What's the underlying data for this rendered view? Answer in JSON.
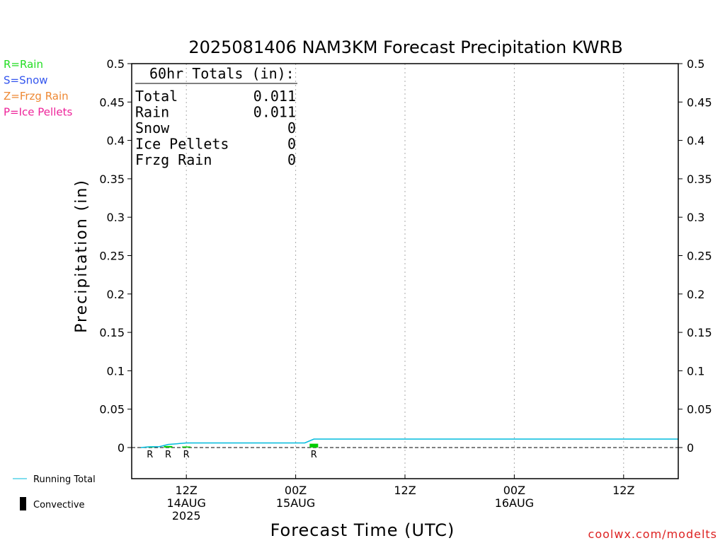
{
  "title": "2025081406 NAM3KM Forecast Precipitation KWRB",
  "ylabel": "Precipitation (in)",
  "xlabel": "Forecast Time (UTC)",
  "credit": "coolwx.com/modelts",
  "legend_types": [
    {
      "text": "R=Rain",
      "color": "#22dd22"
    },
    {
      "text": "S=Snow",
      "color": "#3355ee"
    },
    {
      "text": "Z=Frzg Rain",
      "color": "#ee8833"
    },
    {
      "text": "P=Ice Pellets",
      "color": "#ee2299"
    }
  ],
  "legend_bottom": {
    "running_total": "Running Total",
    "convective": "Convective",
    "running_total_color": "#00bbdd",
    "convective_color": "#000000"
  },
  "totals": {
    "header": "60hr Totals (in):",
    "rows": [
      {
        "label": "Total",
        "value": "0.011"
      },
      {
        "label": "Rain",
        "value": "0.011"
      },
      {
        "label": "Snow",
        "value": "0"
      },
      {
        "label": "Ice Pellets",
        "value": "0"
      },
      {
        "label": "Frzg Rain",
        "value": "0"
      }
    ]
  },
  "chart_data": {
    "type": "bar",
    "title": "2025081406 NAM3KM Forecast Precipitation KWRB",
    "xlabel": "Forecast Time (UTC)",
    "ylabel": "Precipitation (in)",
    "x_units": "forecast hours from 2025-08-14 06Z",
    "xlim": [
      0,
      60
    ],
    "ylim": [
      -0.04,
      0.5
    ],
    "yticks": [
      0,
      0.05,
      0.1,
      0.15,
      0.2,
      0.25,
      0.3,
      0.35,
      0.4,
      0.45,
      0.5
    ],
    "ytick_labels": [
      "0",
      "0.05",
      "0.1",
      "0.15",
      "0.2",
      "0.25",
      "0.3",
      "0.35",
      "0.4",
      "0.45",
      "0.5"
    ],
    "xticks": [
      {
        "x": 6,
        "lines": [
          "12Z",
          "14AUG",
          "2025"
        ]
      },
      {
        "x": 18,
        "lines": [
          "00Z",
          "15AUG"
        ]
      },
      {
        "x": 30,
        "lines": [
          "12Z"
        ]
      },
      {
        "x": 42,
        "lines": [
          "00Z",
          "16AUG"
        ]
      },
      {
        "x": 54,
        "lines": [
          "12Z"
        ]
      }
    ],
    "grid": "vertical dotted at x ticks",
    "bars": [
      {
        "x": 2,
        "value": 0.001,
        "type": "R",
        "color": "#00cc00"
      },
      {
        "x": 4,
        "value": 0.002,
        "type": "R",
        "color": "#00cc00"
      },
      {
        "x": 6,
        "value": 0.001,
        "type": "R",
        "color": "#00cc00"
      },
      {
        "x": 20,
        "value": 0.005,
        "type": "R",
        "color": "#00cc00"
      }
    ],
    "series": [
      {
        "name": "Running Total",
        "color": "#00bbdd",
        "x": [
          1,
          2,
          3,
          4,
          5,
          6,
          7,
          18,
          19,
          20,
          60
        ],
        "y": [
          0.0,
          0.001,
          0.001,
          0.004,
          0.005,
          0.006,
          0.006,
          0.006,
          0.006,
          0.011,
          0.011
        ]
      }
    ]
  }
}
